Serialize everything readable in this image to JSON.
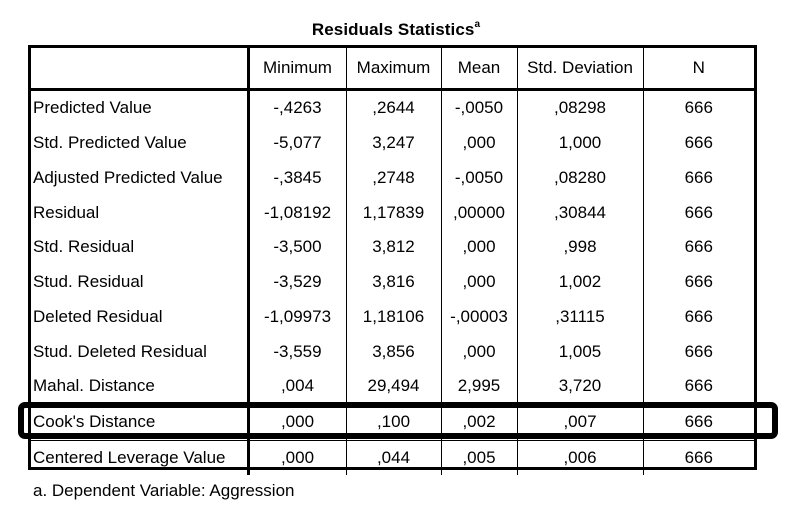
{
  "table": {
    "title": "Residuals Statistics",
    "title_superscript": "a",
    "columns": [
      "Minimum",
      "Maximum",
      "Mean",
      "Std. Deviation",
      "N"
    ],
    "rows": [
      {
        "label": "Predicted Value",
        "values": [
          "-,4263",
          ",2644",
          "-,0050",
          ",08298",
          "666"
        ]
      },
      {
        "label": "Std. Predicted Value",
        "values": [
          "-5,077",
          "3,247",
          ",000",
          "1,000",
          "666"
        ]
      },
      {
        "label": "Adjusted Predicted Value",
        "values": [
          "-,3845",
          ",2748",
          "-,0050",
          ",08280",
          "666"
        ]
      },
      {
        "label": "Residual",
        "values": [
          "-1,08192",
          "1,17839",
          ",00000",
          ",30844",
          "666"
        ]
      },
      {
        "label": "Std. Residual",
        "values": [
          "-3,500",
          "3,812",
          ",000",
          ",998",
          "666"
        ]
      },
      {
        "label": "Stud. Residual",
        "values": [
          "-3,529",
          "3,816",
          ",000",
          "1,002",
          "666"
        ]
      },
      {
        "label": "Deleted Residual",
        "values": [
          "-1,09973",
          "1,18106",
          "-,00003",
          ",31115",
          "666"
        ]
      },
      {
        "label": "Stud. Deleted Residual",
        "values": [
          "-3,559",
          "3,856",
          ",000",
          "1,005",
          "666"
        ]
      },
      {
        "label": "Mahal. Distance",
        "values": [
          ",004",
          "29,494",
          "2,995",
          "3,720",
          "666"
        ]
      },
      {
        "label": "Cook's Distance",
        "values": [
          ",000",
          ",100",
          ",002",
          ",007",
          "666"
        ],
        "highlighted": true
      },
      {
        "label": "Centered Leverage Value",
        "values": [
          ",000",
          ",044",
          ",005",
          ",006",
          "666"
        ]
      }
    ],
    "footnote": "a. Dependent Variable: Aggression"
  }
}
